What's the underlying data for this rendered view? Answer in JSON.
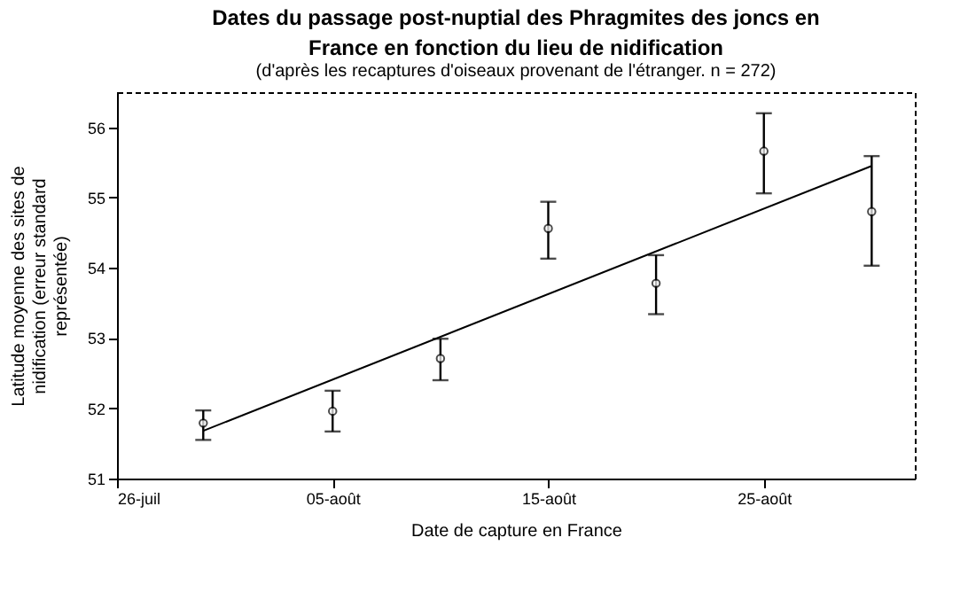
{
  "chart_data": {
    "type": "scatter",
    "title": "Dates du passage post-nuptial des Phragmites des joncs en France en fonction du lieu de nidification",
    "subtitle": "(d'après les recaptures d'oiseaux provenant de l'étranger. n = 272)",
    "xlabel": "Date de capture en France",
    "ylabel": "Latitude moyenne des sites de nidification (erreur standard représentée)",
    "x": [
      "--07-30",
      "--08-05",
      "--08-10",
      "--08-15",
      "--08-20",
      "--08-25",
      "--08-30"
    ],
    "series": [
      {
        "color": "#000000",
        "marker": "circle",
        "values": [
          51.79,
          51.96,
          52.71,
          54.56,
          53.78,
          55.66,
          54.8
        ],
        "errors": [
          [
            51.55,
            51.97
          ],
          [
            51.67,
            52.25
          ],
          [
            52.4,
            52.99
          ],
          [
            54.13,
            54.94
          ],
          [
            53.34,
            54.18
          ],
          [
            55.06,
            56.2
          ],
          [
            54.03,
            55.59
          ]
        ]
      },
      {
        "type": "line",
        "color": "#000000",
        "line_style": "solid",
        "x": [
          "--07-30",
          "--08-30"
        ],
        "values": [
          51.68,
          55.45
        ]
      }
    ],
    "xlim": [
      "--07-26",
      "--09-01"
    ],
    "xticks": [
      {
        "value": "--07-26",
        "label": "26-juil"
      },
      {
        "value": "--08-05",
        "label": "05-août"
      },
      {
        "value": "--08-15",
        "label": "15-août"
      },
      {
        "value": "--08-25",
        "label": "25-août"
      }
    ],
    "ylim": [
      51,
      56.5
    ],
    "yticks": [
      51,
      52,
      53,
      54,
      55,
      56
    ],
    "grid": false
  }
}
